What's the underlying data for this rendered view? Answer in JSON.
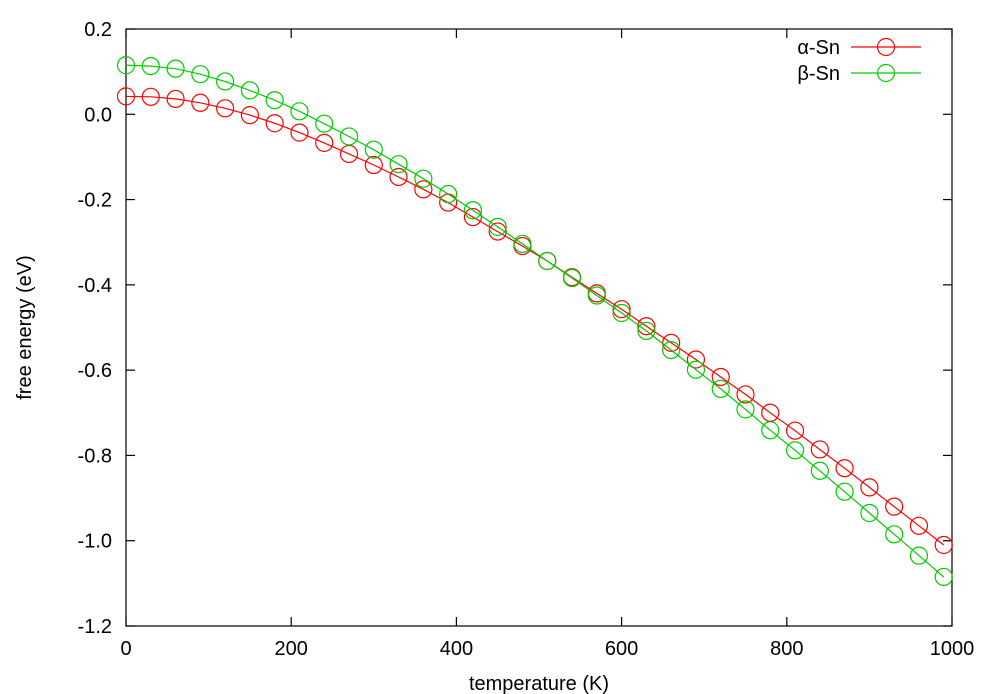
{
  "chart_data": {
    "type": "line",
    "xlabel": "temperature (K)",
    "ylabel": "free energy (eV)",
    "xlim": [
      0,
      1000
    ],
    "ylim": [
      -1.2,
      0.2
    ],
    "x_ticks": [
      0,
      200,
      400,
      600,
      800,
      1000
    ],
    "y_ticks": [
      0.2,
      0.0,
      -0.2,
      -0.4,
      -0.6,
      -0.8,
      -1.0,
      -1.2
    ],
    "x_tick_labels": [
      "0",
      "200",
      "400",
      "600",
      "800",
      "1000"
    ],
    "y_tick_labels": [
      "0.2",
      "0.0",
      "-0.2",
      "-0.4",
      "-0.6",
      "-0.8",
      "-1.0",
      "-1.2"
    ],
    "grid": false,
    "legend_position": "top-right",
    "x": [
      0,
      30,
      60,
      90,
      120,
      150,
      180,
      210,
      240,
      270,
      300,
      330,
      360,
      390,
      420,
      450,
      480,
      510,
      540,
      570,
      600,
      630,
      660,
      690,
      720,
      750,
      780,
      810,
      840,
      870,
      900,
      930,
      960,
      990
    ],
    "series": [
      {
        "name": "α-Sn",
        "color": "#ff0000",
        "marker": "circle-open",
        "values": [
          0.042,
          0.041,
          0.036,
          0.027,
          0.014,
          -0.002,
          -0.021,
          -0.043,
          -0.067,
          -0.093,
          -0.119,
          -0.147,
          -0.176,
          -0.207,
          -0.241,
          -0.275,
          -0.309,
          -0.344,
          -0.382,
          -0.42,
          -0.457,
          -0.497,
          -0.536,
          -0.575,
          -0.616,
          -0.657,
          -0.7,
          -0.742,
          -0.786,
          -0.83,
          -0.875,
          -0.92,
          -0.965,
          -1.01
        ]
      },
      {
        "name": "β-Sn",
        "color": "#00cc00",
        "marker": "circle-open",
        "values": [
          0.115,
          0.113,
          0.107,
          0.094,
          0.077,
          0.056,
          0.033,
          0.007,
          -0.022,
          -0.052,
          -0.083,
          -0.117,
          -0.151,
          -0.187,
          -0.225,
          -0.264,
          -0.304,
          -0.344,
          -0.384,
          -0.425,
          -0.466,
          -0.508,
          -0.553,
          -0.599,
          -0.644,
          -0.692,
          -0.741,
          -0.788,
          -0.836,
          -0.885,
          -0.935,
          -0.985,
          -1.035,
          -1.085
        ]
      }
    ]
  }
}
